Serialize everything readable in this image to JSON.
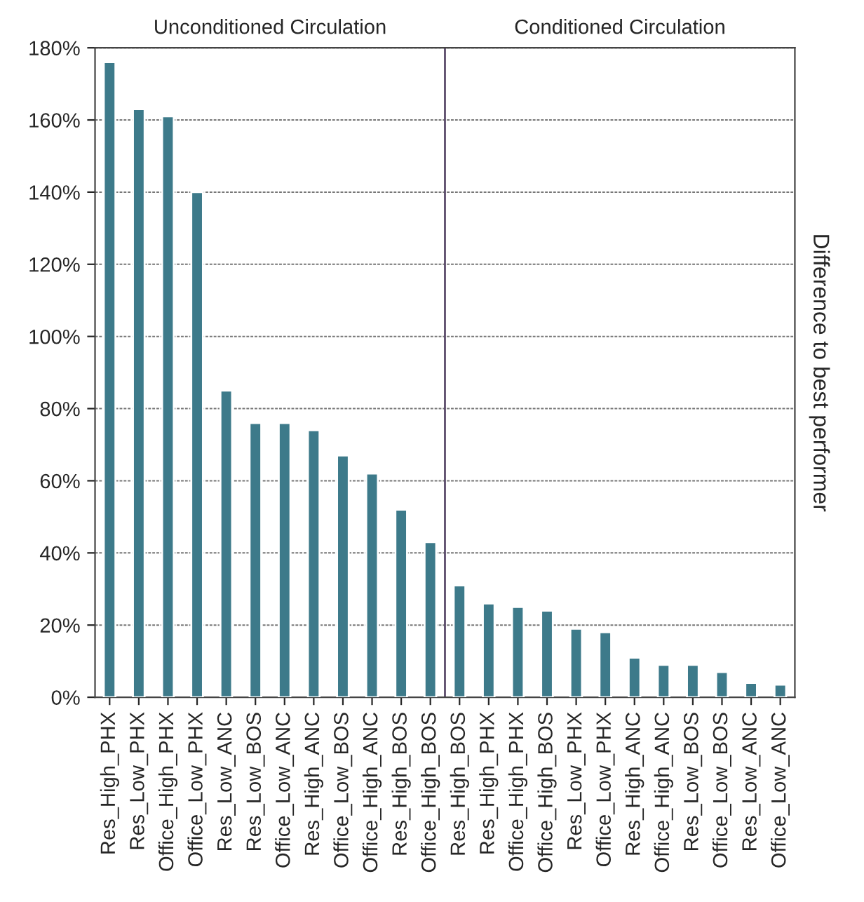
{
  "chart_data": {
    "type": "bar",
    "ylabel": "Difference to best performer",
    "annotations": [
      "Unconditioned Circulation",
      "Conditioned Circulation"
    ],
    "categories": [
      "Res_High_PHX",
      "Res_Low_PHX",
      "Office_High_PHX",
      "Office_Low_PHX",
      "Res_Low_ANC",
      "Res_Low_BOS",
      "Office_Low_ANC",
      "Res_High_ANC",
      "Office_Low_BOS",
      "Office_High_ANC",
      "Res_High_BOS",
      "Office_High_BOS",
      "Res_High_BOS",
      "Res_High_PHX",
      "Office_High_PHX",
      "Office_High_BOS",
      "Res_Low_PHX",
      "Office_Low_PHX",
      "Res_High_ANC",
      "Office_High_ANC",
      "Res_Low_BOS",
      "Office_Low_BOS",
      "Res_Low_ANC",
      "Office_Low_ANC"
    ],
    "series": [
      {
        "color": "#3d7a8a",
        "values": [
          176,
          163,
          161,
          140,
          85,
          76,
          76,
          74,
          67,
          62,
          52,
          43,
          31,
          26,
          25,
          24,
          19,
          18,
          11,
          9,
          9,
          7,
          4,
          3.5
        ]
      }
    ],
    "ylim": [
      0,
      180
    ],
    "yticks": [
      {
        "value": 0,
        "label": "0%"
      },
      {
        "value": 20,
        "label": "20%"
      },
      {
        "value": 40,
        "label": "40%"
      },
      {
        "value": 60,
        "label": "60%"
      },
      {
        "value": 80,
        "label": "80%"
      },
      {
        "value": 100,
        "label": "100%"
      },
      {
        "value": 120,
        "label": "120%"
      },
      {
        "value": 140,
        "label": "140%"
      },
      {
        "value": 160,
        "label": "160%"
      },
      {
        "value": 180,
        "label": "180%"
      }
    ],
    "ref_lines": [
      {
        "axis": "x",
        "value": "Office_High_BOS",
        "color": "#5a4a6a"
      }
    ],
    "grid": "y",
    "legend": false
  }
}
